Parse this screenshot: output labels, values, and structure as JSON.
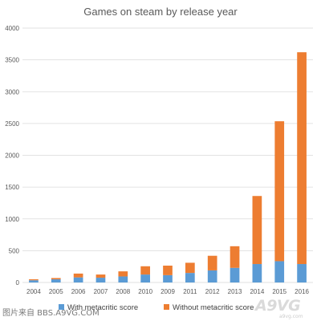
{
  "chart_data": {
    "type": "bar",
    "stacked": true,
    "title": "Games on steam by release year",
    "categories": [
      "2004",
      "2005",
      "2006",
      "2007",
      "2008",
      "2010",
      "2009",
      "2011",
      "2012",
      "2013",
      "2014",
      "2015",
      "2016"
    ],
    "series": [
      {
        "name": "With metacritic score",
        "color": "#5b9bd5",
        "values": [
          35,
          50,
          80,
          75,
          95,
          125,
          115,
          150,
          190,
          230,
          290,
          335,
          290
        ]
      },
      {
        "name": "Without metacritic score",
        "color": "#ed7d31",
        "values": [
          15,
          20,
          60,
          50,
          80,
          130,
          150,
          160,
          230,
          340,
          1070,
          2200,
          3330
        ]
      }
    ],
    "yticks": [
      "0",
      "500",
      "1000",
      "1500",
      "2000",
      "2500",
      "3000",
      "3500",
      "4000"
    ],
    "ylim": [
      0,
      4000
    ],
    "grid": true,
    "legend_position": "bottom"
  },
  "watermark": {
    "caption": "图片来自 BBS.A9VG.COM",
    "logo": "A9VG",
    "logo_sub": "a9vg.com"
  }
}
